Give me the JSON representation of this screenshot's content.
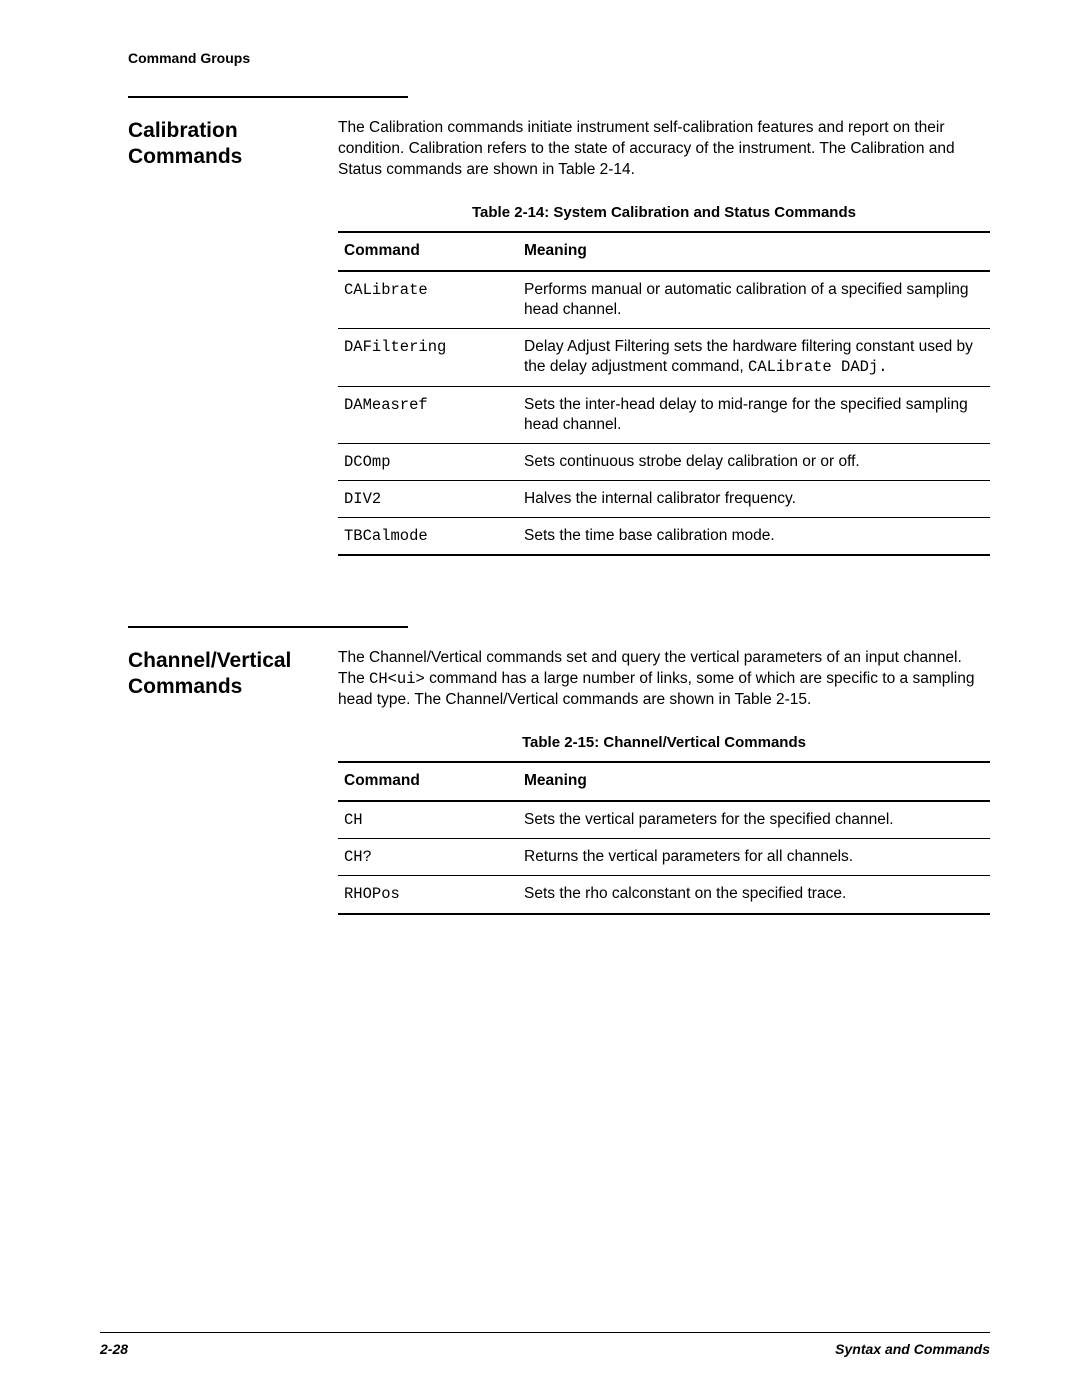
{
  "page_header": "Command Groups",
  "sections": [
    {
      "title": "Calibration Commands",
      "intro": "The Calibration commands initiate instrument self-calibration features and report on their condition. Calibration refers to the state of accuracy of the instrument. The Calibration and Status commands are shown in Table 2-14.",
      "table_caption": "Table 2-14:  System Calibration and Status Commands",
      "columns": [
        "Command",
        "Meaning"
      ],
      "rows": [
        {
          "cmd": "CALibrate",
          "meaning_pre": "Performs manual or automatic calibration of a specified sampling head channel."
        },
        {
          "cmd": "DAFiltering",
          "meaning_pre": "Delay Adjust Filtering sets the hardware filtering constant used by the delay adjustment command, ",
          "mono_tail": "CALibrate DADj."
        },
        {
          "cmd": "DAMeasref",
          "meaning_pre": "Sets the inter-head delay to mid-range for the specified sampling head channel."
        },
        {
          "cmd": "DCOmp",
          "meaning_pre": "Sets continuous strobe delay calibration or or off."
        },
        {
          "cmd": "DIV2",
          "meaning_pre": "Halves the internal calibrator frequency."
        },
        {
          "cmd": "TBCalmode",
          "meaning_pre": "Sets the time base calibration mode."
        }
      ]
    },
    {
      "title": "Channel/Vertical Commands",
      "intro_pre": "The Channel/Vertical commands set and query the vertical parameters of an input channel. The ",
      "intro_mono": "CH<ui>",
      "intro_post": " command has a large number of links, some of which are specific to a sampling head type. The Channel/Vertical commands are shown in Table 2-15.",
      "table_caption": "Table 2-15:  Channel/Vertical Commands",
      "columns": [
        "Command",
        "Meaning"
      ],
      "rows": [
        {
          "cmd": "CH",
          "meaning_pre": "Sets the vertical parameters for the specified channel."
        },
        {
          "cmd": "CH?",
          "meaning_pre": "Returns the vertical parameters for all channels."
        },
        {
          "cmd": "RHOPos",
          "meaning_pre": "Sets the rho calconstant on the specified trace."
        }
      ]
    }
  ],
  "footer": {
    "left": "2-28",
    "right": "Syntax and Commands"
  }
}
